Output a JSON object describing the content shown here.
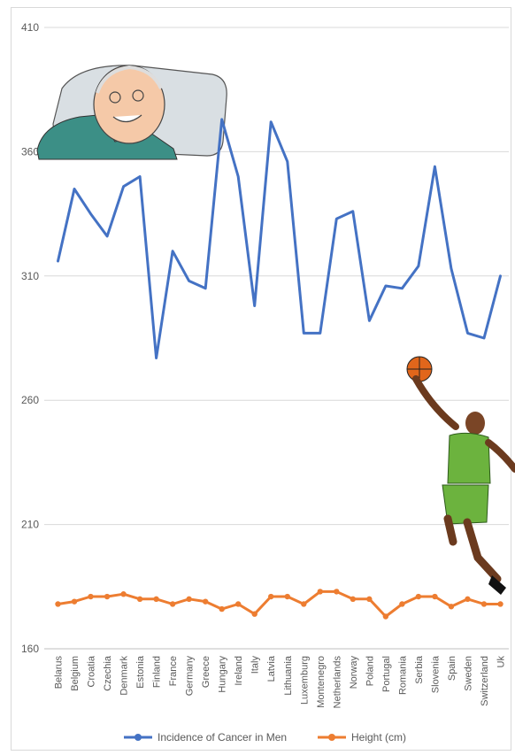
{
  "chart_data": {
    "type": "line",
    "title": "",
    "xlabel": "",
    "ylabel": "",
    "ylim": [
      160,
      410
    ],
    "yticks": [
      160,
      210,
      260,
      310,
      360,
      410
    ],
    "grid": true,
    "legend_position": "bottom",
    "categories": [
      "Belarus",
      "Belgium",
      "Croatia",
      "Czechia",
      "Denmark",
      "Estonia",
      "Finland",
      "France",
      "Germany",
      "Greece",
      "Hungary",
      "Ireland",
      "Italy",
      "Latvia",
      "Lithuania",
      "Luxemburg",
      "Montenegro",
      "Netherlands",
      "Norway",
      "Poland",
      "Portugal",
      "Romania",
      "Serbia",
      "Slovenia",
      "Spain",
      "Sweden",
      "Switzerland",
      "Uk"
    ],
    "series": [
      {
        "name": "Incidence of Cancer in Men",
        "color": "#4472c4",
        "values": [
          316,
          345,
          335,
          326,
          346,
          350,
          277,
          320,
          308,
          305,
          373,
          350,
          298,
          372,
          356,
          287,
          287,
          333,
          336,
          292,
          306,
          305,
          314,
          354,
          313,
          287,
          285,
          310
        ]
      },
      {
        "name": "Height (cm)",
        "color": "#ed7d31",
        "values": [
          178,
          179,
          181,
          181,
          182,
          180,
          180,
          178,
          180,
          179,
          176,
          178,
          174,
          181,
          181,
          178,
          183,
          183,
          180,
          180,
          173,
          178,
          181,
          181,
          177,
          180,
          178,
          178
        ]
      }
    ],
    "illustrations": [
      "elderly-patient-illustration",
      "basketball-player-illustration"
    ]
  }
}
